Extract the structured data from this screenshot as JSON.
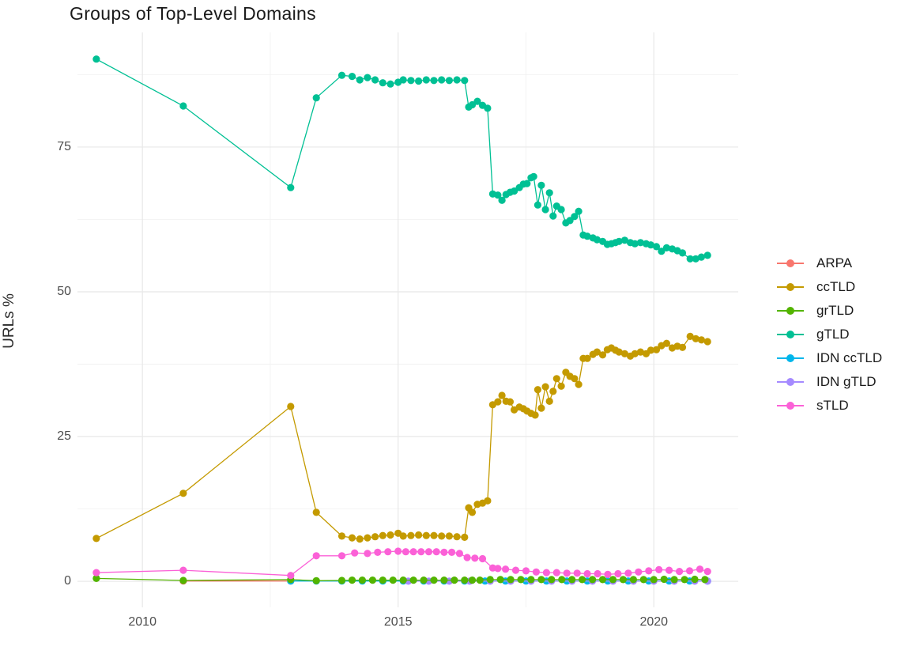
{
  "chart_data": {
    "type": "line",
    "title": "Groups of Top-Level Domains",
    "xlabel": "",
    "ylabel": "URLs %",
    "xlim": [
      2008.73,
      2021.65
    ],
    "ylim": [
      -4.5,
      94.8
    ],
    "x_ticks": [
      2010,
      2015,
      2020
    ],
    "x_minor_ticks": [
      2012.5,
      2017.5
    ],
    "y_ticks": [
      0,
      25,
      50,
      75
    ],
    "y_minor_ticks": [
      12.5,
      37.5,
      62.5,
      87.5
    ],
    "grid": "on",
    "legend_position": "right",
    "draw_order": [
      "ARPA",
      "IDN ccTLD",
      "IDN gTLD",
      "grTLD",
      "sTLD",
      "ccTLD",
      "gTLD"
    ],
    "series": [
      {
        "name": "ARPA",
        "color": "#F8766D",
        "points": [
          [
            2010.8,
            0.05
          ],
          [
            2012.9,
            0.05
          ]
        ]
      },
      {
        "name": "ccTLD",
        "color": "#C49A00",
        "points": [
          [
            2009.1,
            7.4
          ],
          [
            2010.8,
            15.2
          ],
          [
            2012.9,
            30.2
          ],
          [
            2013.4,
            11.9
          ],
          [
            2013.9,
            7.8
          ],
          [
            2014.1,
            7.5
          ],
          [
            2014.25,
            7.3
          ],
          [
            2014.4,
            7.5
          ],
          [
            2014.55,
            7.7
          ],
          [
            2014.7,
            7.9
          ],
          [
            2014.85,
            8.0
          ],
          [
            2015.0,
            8.3
          ],
          [
            2015.1,
            7.8
          ],
          [
            2015.25,
            7.9
          ],
          [
            2015.4,
            8.0
          ],
          [
            2015.55,
            7.9
          ],
          [
            2015.7,
            7.9
          ],
          [
            2015.85,
            7.8
          ],
          [
            2016.0,
            7.8
          ],
          [
            2016.15,
            7.7
          ],
          [
            2016.3,
            7.6
          ],
          [
            2016.38,
            12.7
          ],
          [
            2016.45,
            11.9
          ],
          [
            2016.55,
            13.3
          ],
          [
            2016.65,
            13.5
          ],
          [
            2016.75,
            13.9
          ],
          [
            2016.85,
            30.5
          ],
          [
            2016.95,
            31.0
          ],
          [
            2017.03,
            32.1
          ],
          [
            2017.11,
            31.1
          ],
          [
            2017.19,
            31.0
          ],
          [
            2017.27,
            29.6
          ],
          [
            2017.37,
            30.1
          ],
          [
            2017.45,
            29.8
          ],
          [
            2017.52,
            29.4
          ],
          [
            2017.6,
            29.0
          ],
          [
            2017.68,
            28.7
          ],
          [
            2017.73,
            33.1
          ],
          [
            2017.8,
            29.9
          ],
          [
            2017.88,
            33.6
          ],
          [
            2017.96,
            31.1
          ],
          [
            2018.03,
            32.8
          ],
          [
            2018.1,
            35.0
          ],
          [
            2018.19,
            33.7
          ],
          [
            2018.28,
            36.1
          ],
          [
            2018.36,
            35.4
          ],
          [
            2018.45,
            35.0
          ],
          [
            2018.53,
            34.0
          ],
          [
            2018.62,
            38.5
          ],
          [
            2018.7,
            38.5
          ],
          [
            2018.81,
            39.2
          ],
          [
            2018.89,
            39.6
          ],
          [
            2019.0,
            39.1
          ],
          [
            2019.09,
            40.0
          ],
          [
            2019.17,
            40.3
          ],
          [
            2019.25,
            39.9
          ],
          [
            2019.32,
            39.6
          ],
          [
            2019.43,
            39.3
          ],
          [
            2019.54,
            38.9
          ],
          [
            2019.63,
            39.3
          ],
          [
            2019.74,
            39.6
          ],
          [
            2019.85,
            39.3
          ],
          [
            2019.94,
            39.9
          ],
          [
            2020.05,
            40.0
          ],
          [
            2020.15,
            40.7
          ],
          [
            2020.25,
            41.1
          ],
          [
            2020.36,
            40.3
          ],
          [
            2020.46,
            40.6
          ],
          [
            2020.56,
            40.4
          ],
          [
            2020.71,
            42.3
          ],
          [
            2020.82,
            41.9
          ],
          [
            2020.93,
            41.7
          ],
          [
            2021.05,
            41.4
          ]
        ]
      },
      {
        "name": "grTLD",
        "color": "#53B400",
        "points": [
          [
            2009.1,
            0.5
          ],
          [
            2010.8,
            0.15
          ],
          [
            2012.9,
            0.3
          ],
          [
            2013.4,
            0.1
          ],
          [
            2013.9,
            0.15
          ],
          [
            2014.1,
            0.2
          ],
          [
            2014.3,
            0.2
          ],
          [
            2014.5,
            0.2
          ],
          [
            2014.7,
            0.2
          ],
          [
            2014.9,
            0.2
          ],
          [
            2015.1,
            0.2
          ],
          [
            2015.3,
            0.2
          ],
          [
            2015.5,
            0.2
          ],
          [
            2015.7,
            0.2
          ],
          [
            2015.9,
            0.2
          ],
          [
            2016.1,
            0.2
          ],
          [
            2016.3,
            0.2
          ],
          [
            2016.45,
            0.2
          ],
          [
            2016.6,
            0.2
          ],
          [
            2016.8,
            0.3
          ],
          [
            2017.0,
            0.3
          ],
          [
            2017.2,
            0.3
          ],
          [
            2017.4,
            0.3
          ],
          [
            2017.6,
            0.3
          ],
          [
            2017.8,
            0.3
          ],
          [
            2018.0,
            0.3
          ],
          [
            2018.2,
            0.3
          ],
          [
            2018.4,
            0.3
          ],
          [
            2018.6,
            0.3
          ],
          [
            2018.8,
            0.3
          ],
          [
            2019.0,
            0.3
          ],
          [
            2019.2,
            0.3
          ],
          [
            2019.4,
            0.3
          ],
          [
            2019.6,
            0.3
          ],
          [
            2019.8,
            0.3
          ],
          [
            2020.0,
            0.3
          ],
          [
            2020.2,
            0.35
          ],
          [
            2020.4,
            0.3
          ],
          [
            2020.6,
            0.3
          ],
          [
            2020.8,
            0.35
          ],
          [
            2021.0,
            0.3
          ]
        ]
      },
      {
        "name": "gTLD",
        "color": "#00C094",
        "points": [
          [
            2009.1,
            90.2
          ],
          [
            2010.8,
            82.1
          ],
          [
            2012.9,
            68.0
          ],
          [
            2013.4,
            83.5
          ],
          [
            2013.9,
            87.4
          ],
          [
            2014.1,
            87.2
          ],
          [
            2014.25,
            86.6
          ],
          [
            2014.4,
            87.0
          ],
          [
            2014.55,
            86.6
          ],
          [
            2014.7,
            86.1
          ],
          [
            2014.85,
            85.9
          ],
          [
            2015.0,
            86.2
          ],
          [
            2015.1,
            86.6
          ],
          [
            2015.25,
            86.5
          ],
          [
            2015.4,
            86.4
          ],
          [
            2015.55,
            86.6
          ],
          [
            2015.7,
            86.5
          ],
          [
            2015.85,
            86.6
          ],
          [
            2016.0,
            86.5
          ],
          [
            2016.15,
            86.6
          ],
          [
            2016.3,
            86.5
          ],
          [
            2016.38,
            81.9
          ],
          [
            2016.45,
            82.3
          ],
          [
            2016.55,
            82.9
          ],
          [
            2016.65,
            82.2
          ],
          [
            2016.75,
            81.7
          ],
          [
            2016.85,
            66.9
          ],
          [
            2016.95,
            66.7
          ],
          [
            2017.03,
            65.8
          ],
          [
            2017.11,
            66.8
          ],
          [
            2017.19,
            67.2
          ],
          [
            2017.27,
            67.4
          ],
          [
            2017.37,
            68.0
          ],
          [
            2017.45,
            68.6
          ],
          [
            2017.52,
            68.7
          ],
          [
            2017.6,
            69.7
          ],
          [
            2017.65,
            69.9
          ],
          [
            2017.73,
            65.0
          ],
          [
            2017.8,
            68.4
          ],
          [
            2017.88,
            64.2
          ],
          [
            2017.96,
            67.1
          ],
          [
            2018.03,
            63.1
          ],
          [
            2018.1,
            64.8
          ],
          [
            2018.19,
            64.2
          ],
          [
            2018.28,
            61.9
          ],
          [
            2018.36,
            62.3
          ],
          [
            2018.45,
            63.0
          ],
          [
            2018.53,
            63.9
          ],
          [
            2018.62,
            59.8
          ],
          [
            2018.7,
            59.6
          ],
          [
            2018.81,
            59.3
          ],
          [
            2018.89,
            59.0
          ],
          [
            2019.0,
            58.7
          ],
          [
            2019.09,
            58.2
          ],
          [
            2019.17,
            58.3
          ],
          [
            2019.25,
            58.5
          ],
          [
            2019.32,
            58.7
          ],
          [
            2019.43,
            58.9
          ],
          [
            2019.54,
            58.5
          ],
          [
            2019.63,
            58.3
          ],
          [
            2019.74,
            58.5
          ],
          [
            2019.85,
            58.3
          ],
          [
            2019.94,
            58.1
          ],
          [
            2020.05,
            57.8
          ],
          [
            2020.15,
            57.0
          ],
          [
            2020.25,
            57.6
          ],
          [
            2020.36,
            57.4
          ],
          [
            2020.46,
            57.1
          ],
          [
            2020.56,
            56.7
          ],
          [
            2020.71,
            55.7
          ],
          [
            2020.82,
            55.7
          ],
          [
            2020.93,
            56.0
          ],
          [
            2021.05,
            56.3
          ]
        ]
      },
      {
        "name": "IDN ccTLD",
        "color": "#00B6EB",
        "points": [
          [
            2012.9,
            0.05
          ],
          [
            2013.4,
            0.05
          ],
          [
            2013.9,
            0.05
          ],
          [
            2014.3,
            0.05
          ],
          [
            2014.7,
            0.05
          ],
          [
            2015.1,
            0.05
          ],
          [
            2015.5,
            0.05
          ],
          [
            2015.9,
            0.05
          ],
          [
            2016.3,
            0.05
          ],
          [
            2016.7,
            0.05
          ],
          [
            2017.1,
            0.05
          ],
          [
            2017.5,
            0.05
          ],
          [
            2017.9,
            0.05
          ],
          [
            2018.3,
            0.05
          ],
          [
            2018.7,
            0.05
          ],
          [
            2019.1,
            0.05
          ],
          [
            2019.5,
            0.05
          ],
          [
            2019.9,
            0.05
          ],
          [
            2020.3,
            0.05
          ],
          [
            2020.7,
            0.05
          ],
          [
            2021.05,
            0.05
          ]
        ]
      },
      {
        "name": "IDN gTLD",
        "color": "#A58AFF",
        "points": [
          [
            2015.2,
            0.02
          ],
          [
            2015.6,
            0.02
          ],
          [
            2016.0,
            0.02
          ],
          [
            2016.4,
            0.02
          ],
          [
            2016.8,
            0.02
          ],
          [
            2017.2,
            0.02
          ],
          [
            2017.6,
            0.02
          ],
          [
            2018.0,
            0.02
          ],
          [
            2018.4,
            0.02
          ],
          [
            2018.8,
            0.02
          ],
          [
            2019.2,
            0.02
          ],
          [
            2019.6,
            0.02
          ],
          [
            2020.0,
            0.02
          ],
          [
            2020.4,
            0.02
          ],
          [
            2020.8,
            0.02
          ],
          [
            2021.05,
            0.02
          ]
        ]
      },
      {
        "name": "sTLD",
        "color": "#FB61D7",
        "points": [
          [
            2009.1,
            1.5
          ],
          [
            2010.8,
            1.9
          ],
          [
            2012.9,
            1.0
          ],
          [
            2013.4,
            4.4
          ],
          [
            2013.9,
            4.4
          ],
          [
            2014.15,
            4.9
          ],
          [
            2014.4,
            4.8
          ],
          [
            2014.6,
            5.0
          ],
          [
            2014.8,
            5.1
          ],
          [
            2015.0,
            5.2
          ],
          [
            2015.15,
            5.1
          ],
          [
            2015.3,
            5.1
          ],
          [
            2015.45,
            5.1
          ],
          [
            2015.6,
            5.1
          ],
          [
            2015.75,
            5.1
          ],
          [
            2015.9,
            5.0
          ],
          [
            2016.05,
            5.0
          ],
          [
            2016.2,
            4.8
          ],
          [
            2016.35,
            4.1
          ],
          [
            2016.5,
            4.0
          ],
          [
            2016.65,
            3.9
          ],
          [
            2016.85,
            2.3
          ],
          [
            2016.95,
            2.2
          ],
          [
            2017.1,
            2.1
          ],
          [
            2017.3,
            1.9
          ],
          [
            2017.5,
            1.8
          ],
          [
            2017.7,
            1.6
          ],
          [
            2017.9,
            1.5
          ],
          [
            2018.1,
            1.5
          ],
          [
            2018.3,
            1.4
          ],
          [
            2018.5,
            1.4
          ],
          [
            2018.7,
            1.3
          ],
          [
            2018.9,
            1.3
          ],
          [
            2019.1,
            1.2
          ],
          [
            2019.3,
            1.3
          ],
          [
            2019.5,
            1.4
          ],
          [
            2019.7,
            1.6
          ],
          [
            2019.9,
            1.8
          ],
          [
            2020.1,
            2.0
          ],
          [
            2020.3,
            1.9
          ],
          [
            2020.5,
            1.7
          ],
          [
            2020.7,
            1.8
          ],
          [
            2020.9,
            2.1
          ],
          [
            2021.05,
            1.7
          ]
        ]
      }
    ]
  },
  "style": {
    "grid_major_color": "#E8E8E8",
    "grid_minor_color": "#F2F2F2",
    "tick_label_color": "#4d4d4d",
    "title_color": "#1a1a1a"
  },
  "legend": {
    "items": [
      "ARPA",
      "ccTLD",
      "grTLD",
      "gTLD",
      "IDN ccTLD",
      "IDN gTLD",
      "sTLD"
    ]
  }
}
